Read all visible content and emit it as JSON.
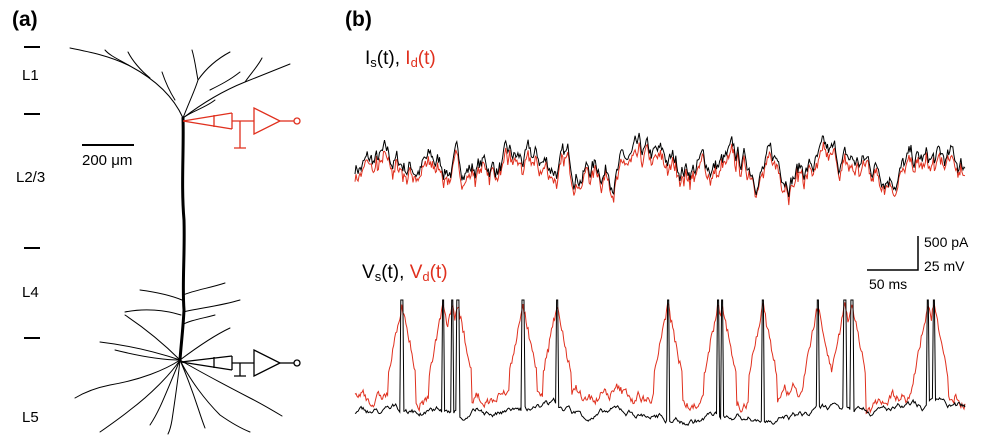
{
  "panel_a": {
    "label": "(a)",
    "layers": [
      "L1",
      "L2/3",
      "L4",
      "L5"
    ],
    "scale_bar": "200 μm"
  },
  "panel_b": {
    "label": "(b)",
    "current_label": {
      "soma": "I",
      "soma_sub": "s",
      "soma_arg": "(t), ",
      "dend": "I",
      "dend_sub": "d",
      "dend_arg": "(t)"
    },
    "voltage_label": {
      "soma": "V",
      "soma_sub": "s",
      "soma_arg": "(t), ",
      "dend": "V",
      "dend_sub": "d",
      "dend_arg": "(t)"
    },
    "scale_current": "500 pA",
    "scale_voltage": "25 mV",
    "scale_time": "50 ms"
  },
  "colors": {
    "soma": "#000000",
    "dendrite": "#e0301e"
  }
}
